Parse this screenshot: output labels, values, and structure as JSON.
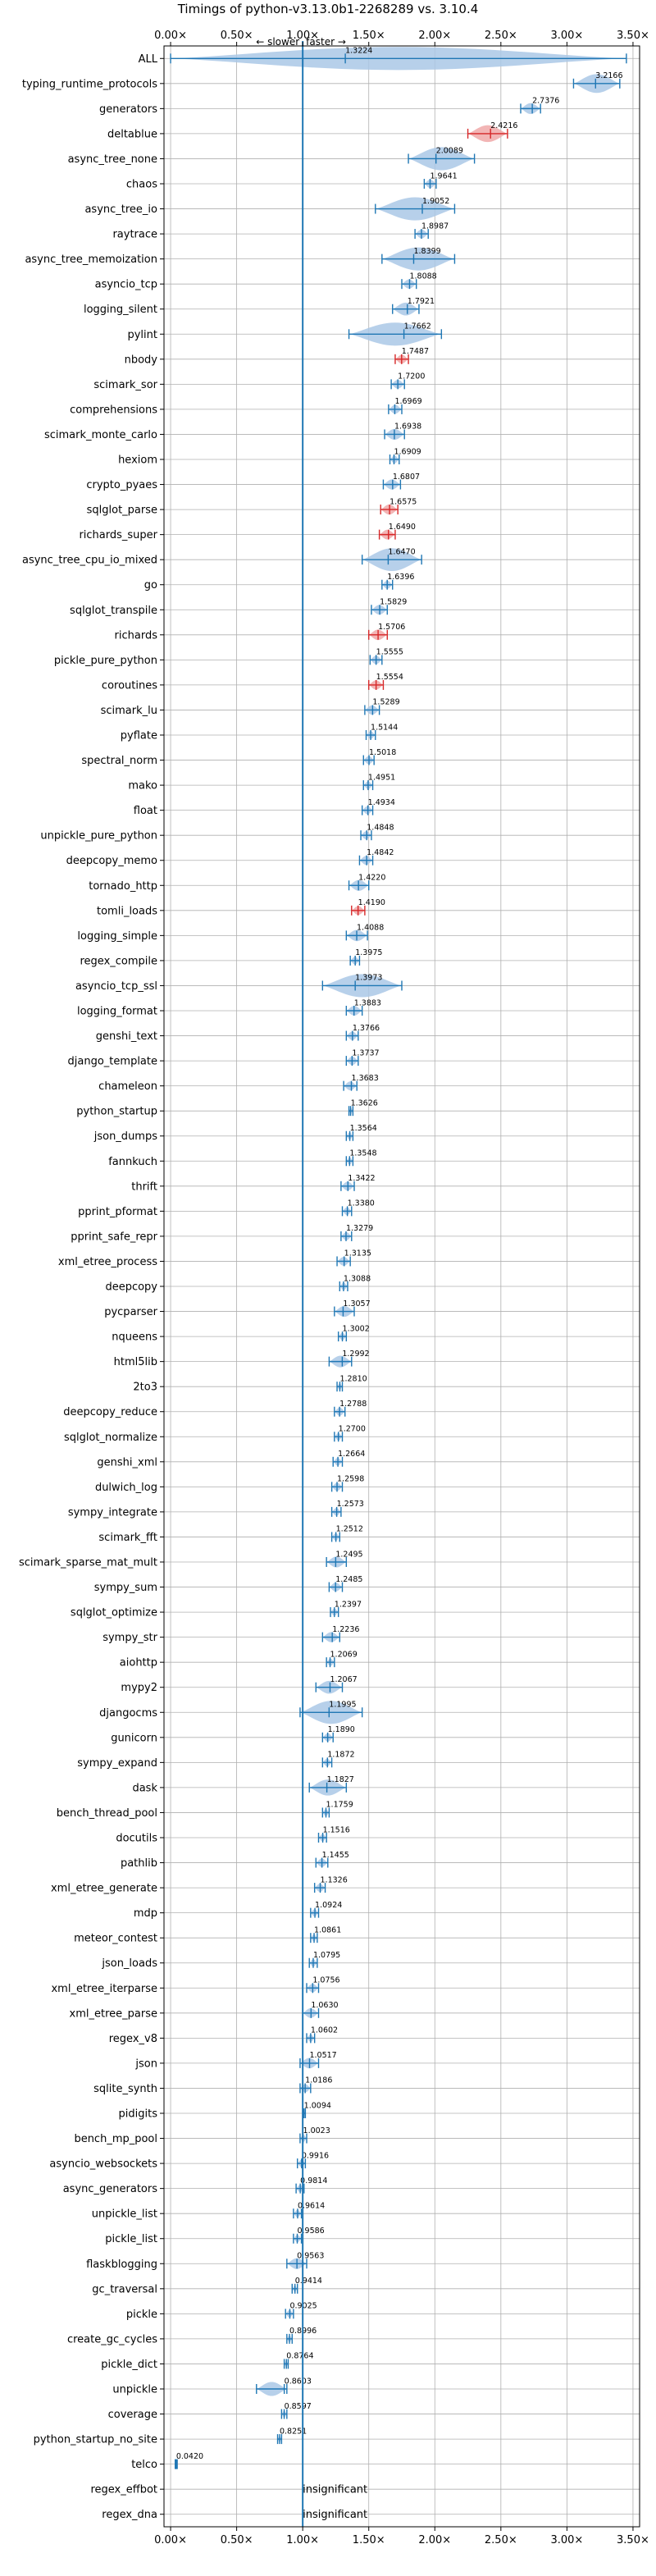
{
  "chart_data": {
    "type": "violin",
    "title": "Timings of python-v3.13.0b1-2268289 vs. 3.10.4",
    "direction_labels": {
      "slower": "← slower",
      "faster": "faster →"
    },
    "xlim": [
      -0.05,
      3.55
    ],
    "x_ticks": [
      {
        "value": 0.0,
        "label": "0.00×"
      },
      {
        "value": 0.5,
        "label": "0.50×"
      },
      {
        "value": 1.0,
        "label": "1.00×"
      },
      {
        "value": 1.5,
        "label": "1.50×"
      },
      {
        "value": 2.0,
        "label": "2.00×"
      },
      {
        "value": 2.5,
        "label": "2.50×"
      },
      {
        "value": 3.0,
        "label": "3.00×"
      },
      {
        "value": 3.5,
        "label": "3.50×"
      }
    ],
    "reference_line": 1.0,
    "grid": true,
    "insignificant_label": "insignificant",
    "benchmarks": [
      {
        "name": "ALL",
        "value": 1.3224,
        "label": "1.3224",
        "range": [
          0.0,
          3.45
        ]
      },
      {
        "name": "typing_runtime_protocols",
        "value": 3.2166,
        "label": "3.2166",
        "range": [
          3.05,
          3.4
        ]
      },
      {
        "name": "generators",
        "value": 2.7376,
        "label": "2.7376",
        "range": [
          2.65,
          2.8
        ]
      },
      {
        "name": "deltablue",
        "value": 2.4216,
        "label": "2.4216",
        "range": [
          2.25,
          2.55
        ],
        "highlight": true
      },
      {
        "name": "async_tree_none",
        "value": 2.0089,
        "label": "2.0089",
        "range": [
          1.8,
          2.3
        ]
      },
      {
        "name": "chaos",
        "value": 1.9641,
        "label": "1.9641",
        "range": [
          1.92,
          2.01
        ]
      },
      {
        "name": "async_tree_io",
        "value": 1.9052,
        "label": "1.9052",
        "range": [
          1.55,
          2.15
        ]
      },
      {
        "name": "raytrace",
        "value": 1.8987,
        "label": "1.8987",
        "range": [
          1.85,
          1.95
        ]
      },
      {
        "name": "async_tree_memoization",
        "value": 1.8399,
        "label": "1.8399",
        "range": [
          1.6,
          2.15
        ]
      },
      {
        "name": "asyncio_tcp",
        "value": 1.8088,
        "label": "1.8088",
        "range": [
          1.75,
          1.86
        ]
      },
      {
        "name": "logging_silent",
        "value": 1.7921,
        "label": "1.7921",
        "range": [
          1.68,
          1.88
        ]
      },
      {
        "name": "pylint",
        "value": 1.7662,
        "label": "1.7662",
        "range": [
          1.35,
          2.05
        ]
      },
      {
        "name": "nbody",
        "value": 1.7487,
        "label": "1.7487",
        "range": [
          1.7,
          1.8
        ],
        "highlight": true
      },
      {
        "name": "scimark_sor",
        "value": 1.72,
        "label": "1.7200",
        "range": [
          1.67,
          1.77
        ]
      },
      {
        "name": "comprehensions",
        "value": 1.6969,
        "label": "1.6969",
        "range": [
          1.65,
          1.75
        ]
      },
      {
        "name": "scimark_monte_carlo",
        "value": 1.6938,
        "label": "1.6938",
        "range": [
          1.62,
          1.77
        ]
      },
      {
        "name": "hexiom",
        "value": 1.6909,
        "label": "1.6909",
        "range": [
          1.66,
          1.73
        ]
      },
      {
        "name": "crypto_pyaes",
        "value": 1.6807,
        "label": "1.6807",
        "range": [
          1.61,
          1.74
        ]
      },
      {
        "name": "sqlglot_parse",
        "value": 1.6575,
        "label": "1.6575",
        "range": [
          1.59,
          1.72
        ],
        "highlight": true
      },
      {
        "name": "richards_super",
        "value": 1.649,
        "label": "1.6490",
        "range": [
          1.58,
          1.7
        ],
        "highlight": true
      },
      {
        "name": "async_tree_cpu_io_mixed",
        "value": 1.647,
        "label": "1.6470",
        "range": [
          1.45,
          1.9
        ]
      },
      {
        "name": "go",
        "value": 1.6396,
        "label": "1.6396",
        "range": [
          1.6,
          1.68
        ]
      },
      {
        "name": "sqlglot_transpile",
        "value": 1.5829,
        "label": "1.5829",
        "range": [
          1.52,
          1.64
        ]
      },
      {
        "name": "richards",
        "value": 1.5706,
        "label": "1.5706",
        "range": [
          1.5,
          1.64
        ],
        "highlight": true
      },
      {
        "name": "pickle_pure_python",
        "value": 1.5555,
        "label": "1.5555",
        "range": [
          1.51,
          1.6
        ]
      },
      {
        "name": "coroutines",
        "value": 1.5554,
        "label": "1.5554",
        "range": [
          1.5,
          1.61
        ],
        "highlight": true
      },
      {
        "name": "scimark_lu",
        "value": 1.5289,
        "label": "1.5289",
        "range": [
          1.47,
          1.58
        ]
      },
      {
        "name": "pyflate",
        "value": 1.5144,
        "label": "1.5144",
        "range": [
          1.48,
          1.55
        ]
      },
      {
        "name": "spectral_norm",
        "value": 1.5018,
        "label": "1.5018",
        "range": [
          1.46,
          1.54
        ]
      },
      {
        "name": "mako",
        "value": 1.4951,
        "label": "1.4951",
        "range": [
          1.46,
          1.53
        ]
      },
      {
        "name": "float",
        "value": 1.4934,
        "label": "1.4934",
        "range": [
          1.45,
          1.53
        ]
      },
      {
        "name": "unpickle_pure_python",
        "value": 1.4848,
        "label": "1.4848",
        "range": [
          1.44,
          1.52
        ]
      },
      {
        "name": "deepcopy_memo",
        "value": 1.4842,
        "label": "1.4842",
        "range": [
          1.43,
          1.53
        ]
      },
      {
        "name": "tornado_http",
        "value": 1.422,
        "label": "1.4220",
        "range": [
          1.35,
          1.5
        ]
      },
      {
        "name": "tomli_loads",
        "value": 1.419,
        "label": "1.4190",
        "range": [
          1.37,
          1.47
        ],
        "highlight": true
      },
      {
        "name": "logging_simple",
        "value": 1.4088,
        "label": "1.4088",
        "range": [
          1.33,
          1.49
        ]
      },
      {
        "name": "regex_compile",
        "value": 1.3975,
        "label": "1.3975",
        "range": [
          1.36,
          1.43
        ]
      },
      {
        "name": "asyncio_tcp_ssl",
        "value": 1.3973,
        "label": "1.3973",
        "range": [
          1.15,
          1.75
        ]
      },
      {
        "name": "logging_format",
        "value": 1.3883,
        "label": "1.3883",
        "range": [
          1.33,
          1.45
        ]
      },
      {
        "name": "genshi_text",
        "value": 1.3766,
        "label": "1.3766",
        "range": [
          1.33,
          1.42
        ]
      },
      {
        "name": "django_template",
        "value": 1.3737,
        "label": "1.3737",
        "range": [
          1.33,
          1.42
        ]
      },
      {
        "name": "chameleon",
        "value": 1.3683,
        "label": "1.3683",
        "range": [
          1.31,
          1.41
        ]
      },
      {
        "name": "python_startup",
        "value": 1.3626,
        "label": "1.3626",
        "range": [
          1.35,
          1.38
        ]
      },
      {
        "name": "json_dumps",
        "value": 1.3564,
        "label": "1.3564",
        "range": [
          1.33,
          1.38
        ]
      },
      {
        "name": "fannkuch",
        "value": 1.3548,
        "label": "1.3548",
        "range": [
          1.33,
          1.38
        ]
      },
      {
        "name": "thrift",
        "value": 1.3422,
        "label": "1.3422",
        "range": [
          1.29,
          1.39
        ]
      },
      {
        "name": "pprint_pformat",
        "value": 1.338,
        "label": "1.3380",
        "range": [
          1.3,
          1.37
        ]
      },
      {
        "name": "pprint_safe_repr",
        "value": 1.3279,
        "label": "1.3279",
        "range": [
          1.29,
          1.37
        ]
      },
      {
        "name": "xml_etree_process",
        "value": 1.3135,
        "label": "1.3135",
        "range": [
          1.26,
          1.36
        ]
      },
      {
        "name": "deepcopy",
        "value": 1.3088,
        "label": "1.3088",
        "range": [
          1.28,
          1.34
        ]
      },
      {
        "name": "pycparser",
        "value": 1.3057,
        "label": "1.3057",
        "range": [
          1.24,
          1.39
        ]
      },
      {
        "name": "nqueens",
        "value": 1.3002,
        "label": "1.3002",
        "range": [
          1.27,
          1.33
        ]
      },
      {
        "name": "html5lib",
        "value": 1.2992,
        "label": "1.2992",
        "range": [
          1.2,
          1.37
        ]
      },
      {
        "name": "2to3",
        "value": 1.281,
        "label": "1.2810",
        "range": [
          1.26,
          1.3
        ]
      },
      {
        "name": "deepcopy_reduce",
        "value": 1.2788,
        "label": "1.2788",
        "range": [
          1.24,
          1.32
        ]
      },
      {
        "name": "sqlglot_normalize",
        "value": 1.27,
        "label": "1.2700",
        "range": [
          1.24,
          1.3
        ]
      },
      {
        "name": "genshi_xml",
        "value": 1.2664,
        "label": "1.2664",
        "range": [
          1.23,
          1.3
        ]
      },
      {
        "name": "dulwich_log",
        "value": 1.2598,
        "label": "1.2598",
        "range": [
          1.22,
          1.3
        ]
      },
      {
        "name": "sympy_integrate",
        "value": 1.2573,
        "label": "1.2573",
        "range": [
          1.22,
          1.29
        ]
      },
      {
        "name": "scimark_fft",
        "value": 1.2512,
        "label": "1.2512",
        "range": [
          1.22,
          1.28
        ]
      },
      {
        "name": "scimark_sparse_mat_mult",
        "value": 1.2495,
        "label": "1.2495",
        "range": [
          1.18,
          1.33
        ]
      },
      {
        "name": "sympy_sum",
        "value": 1.2485,
        "label": "1.2485",
        "range": [
          1.2,
          1.3
        ]
      },
      {
        "name": "sqlglot_optimize",
        "value": 1.2397,
        "label": "1.2397",
        "range": [
          1.21,
          1.27
        ]
      },
      {
        "name": "sympy_str",
        "value": 1.2236,
        "label": "1.2236",
        "range": [
          1.15,
          1.28
        ]
      },
      {
        "name": "aiohttp",
        "value": 1.2069,
        "label": "1.2069",
        "range": [
          1.18,
          1.24
        ]
      },
      {
        "name": "mypy2",
        "value": 1.2067,
        "label": "1.2067",
        "range": [
          1.1,
          1.3
        ]
      },
      {
        "name": "djangocms",
        "value": 1.1995,
        "label": "1.1995",
        "range": [
          0.98,
          1.45
        ]
      },
      {
        "name": "gunicorn",
        "value": 1.189,
        "label": "1.1890",
        "range": [
          1.15,
          1.23
        ]
      },
      {
        "name": "sympy_expand",
        "value": 1.1872,
        "label": "1.1872",
        "range": [
          1.15,
          1.22
        ]
      },
      {
        "name": "dask",
        "value": 1.1827,
        "label": "1.1827",
        "range": [
          1.05,
          1.33
        ]
      },
      {
        "name": "bench_thread_pool",
        "value": 1.1759,
        "label": "1.1759",
        "range": [
          1.15,
          1.2
        ]
      },
      {
        "name": "docutils",
        "value": 1.1516,
        "label": "1.1516",
        "range": [
          1.12,
          1.18
        ]
      },
      {
        "name": "pathlib",
        "value": 1.1455,
        "label": "1.1455",
        "range": [
          1.1,
          1.19
        ]
      },
      {
        "name": "xml_etree_generate",
        "value": 1.1326,
        "label": "1.1326",
        "range": [
          1.09,
          1.17
        ]
      },
      {
        "name": "mdp",
        "value": 1.0924,
        "label": "1.0924",
        "range": [
          1.06,
          1.12
        ]
      },
      {
        "name": "meteor_contest",
        "value": 1.0861,
        "label": "1.0861",
        "range": [
          1.06,
          1.11
        ]
      },
      {
        "name": "json_loads",
        "value": 1.0795,
        "label": "1.0795",
        "range": [
          1.05,
          1.11
        ]
      },
      {
        "name": "xml_etree_iterparse",
        "value": 1.0756,
        "label": "1.0756",
        "range": [
          1.03,
          1.12
        ]
      },
      {
        "name": "xml_etree_parse",
        "value": 1.063,
        "label": "1.0630",
        "range": [
          1.0,
          1.12
        ]
      },
      {
        "name": "regex_v8",
        "value": 1.0602,
        "label": "1.0602",
        "range": [
          1.03,
          1.09
        ]
      },
      {
        "name": "json",
        "value": 1.0517,
        "label": "1.0517",
        "range": [
          0.98,
          1.12
        ]
      },
      {
        "name": "sqlite_synth",
        "value": 1.0186,
        "label": "1.0186",
        "range": [
          0.98,
          1.06
        ]
      },
      {
        "name": "pidigits",
        "value": 1.0094,
        "label": "1.0094",
        "range": [
          1.0,
          1.02
        ]
      },
      {
        "name": "bench_mp_pool",
        "value": 1.0023,
        "label": "1.0023",
        "range": [
          0.98,
          1.03
        ]
      },
      {
        "name": "asyncio_websockets",
        "value": 0.9916,
        "label": "0.9916",
        "range": [
          0.96,
          1.02
        ]
      },
      {
        "name": "async_generators",
        "value": 0.9814,
        "label": "0.9814",
        "range": [
          0.95,
          1.01
        ]
      },
      {
        "name": "unpickle_list",
        "value": 0.9614,
        "label": "0.9614",
        "range": [
          0.93,
          0.99
        ]
      },
      {
        "name": "pickle_list",
        "value": 0.9586,
        "label": "0.9586",
        "range": [
          0.93,
          0.99
        ]
      },
      {
        "name": "flaskblogging",
        "value": 0.9563,
        "label": "0.9563",
        "range": [
          0.88,
          1.03
        ]
      },
      {
        "name": "gc_traversal",
        "value": 0.9414,
        "label": "0.9414",
        "range": [
          0.92,
          0.96
        ]
      },
      {
        "name": "pickle",
        "value": 0.9025,
        "label": "0.9025",
        "range": [
          0.87,
          0.93
        ]
      },
      {
        "name": "create_gc_cycles",
        "value": 0.8996,
        "label": "0.8996",
        "range": [
          0.88,
          0.92
        ]
      },
      {
        "name": "pickle_dict",
        "value": 0.8764,
        "label": "0.8764",
        "range": [
          0.86,
          0.89
        ]
      },
      {
        "name": "unpickle",
        "value": 0.8603,
        "label": "0.8603",
        "range": [
          0.65,
          0.88
        ]
      },
      {
        "name": "coverage",
        "value": 0.8597,
        "label": "0.8597",
        "range": [
          0.84,
          0.88
        ]
      },
      {
        "name": "python_startup_no_site",
        "value": 0.8251,
        "label": "0.8251",
        "range": [
          0.81,
          0.84
        ]
      },
      {
        "name": "telco",
        "value": 0.042,
        "label": "0.0420",
        "range": [
          0.035,
          0.05
        ]
      },
      {
        "name": "regex_effbot",
        "value": null,
        "label": "insignificant",
        "insignificant": true
      },
      {
        "name": "regex_dna",
        "value": null,
        "label": "insignificant",
        "insignificant": true
      }
    ]
  },
  "colors": {
    "violin": "#aac8e6",
    "violin_highlight": "#f0a8a8",
    "line": "#1f77b4",
    "highlight_line": "#d62728",
    "grid": "#b0b0b0",
    "axis": "#000000"
  }
}
